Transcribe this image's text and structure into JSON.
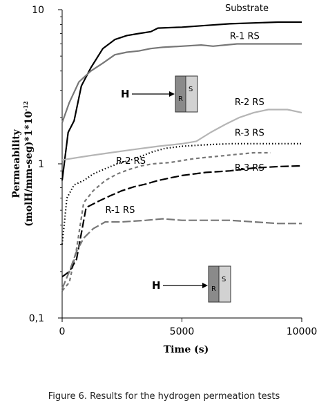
{
  "chart_data": {
    "type": "line",
    "x_axis": {
      "label": "Time (s)",
      "range": [
        0,
        10000
      ],
      "ticks": [
        0,
        5000,
        10000
      ],
      "tick_labels": [
        "0",
        "5000",
        "10000"
      ]
    },
    "y_axis": {
      "label": "Permeability (molH/mm-seg)*1*10",
      "label_exponent": "-12",
      "scale": "log",
      "range": [
        0.1,
        10
      ],
      "ticks": [
        0.1,
        1,
        10
      ],
      "tick_labels": [
        "0,1",
        "1",
        "10"
      ]
    },
    "grid": false,
    "series": [
      {
        "name": "Substrate",
        "color": "#000000",
        "dash": "solid",
        "points": [
          [
            0,
            0.78
          ],
          [
            250,
            1.6
          ],
          [
            500,
            1.9
          ],
          [
            800,
            3.2
          ],
          [
            1200,
            4.2
          ],
          [
            1700,
            5.6
          ],
          [
            2200,
            6.4
          ],
          [
            2700,
            6.8
          ],
          [
            3200,
            7.0
          ],
          [
            3700,
            7.2
          ],
          [
            4000,
            7.6
          ],
          [
            5000,
            7.7
          ],
          [
            6000,
            7.9
          ],
          [
            7000,
            8.1
          ],
          [
            8000,
            8.2
          ],
          [
            9000,
            8.3
          ],
          [
            10000,
            8.3
          ]
        ]
      },
      {
        "name": "R-1 RS",
        "color": "#777777",
        "dash": "solid",
        "points": [
          [
            0,
            1.85
          ],
          [
            300,
            2.5
          ],
          [
            700,
            3.4
          ],
          [
            1200,
            4.0
          ],
          [
            1700,
            4.5
          ],
          [
            2200,
            5.1
          ],
          [
            2700,
            5.3
          ],
          [
            3200,
            5.4
          ],
          [
            3700,
            5.6
          ],
          [
            4200,
            5.7
          ],
          [
            5000,
            5.8
          ],
          [
            5800,
            5.9
          ],
          [
            6300,
            5.8
          ],
          [
            6800,
            5.9
          ],
          [
            7300,
            6.0
          ],
          [
            8000,
            6.0
          ],
          [
            9000,
            6.0
          ],
          [
            10000,
            6.0
          ]
        ]
      },
      {
        "name": "R-2 RS",
        "color": "#b5b5b5",
        "dash": "solid",
        "points": [
          [
            0,
            1.06
          ],
          [
            1000,
            1.12
          ],
          [
            2000,
            1.18
          ],
          [
            3000,
            1.24
          ],
          [
            4000,
            1.3
          ],
          [
            5000,
            1.35
          ],
          [
            5600,
            1.4
          ],
          [
            6200,
            1.6
          ],
          [
            6800,
            1.8
          ],
          [
            7400,
            2.0
          ],
          [
            8000,
            2.15
          ],
          [
            8600,
            2.25
          ],
          [
            9400,
            2.25
          ],
          [
            10000,
            2.15
          ]
        ]
      },
      {
        "name": "R-3 RS",
        "color": "#000000",
        "dash": "dotted",
        "points": [
          [
            0,
            0.3
          ],
          [
            200,
            0.6
          ],
          [
            500,
            0.73
          ],
          [
            900,
            0.78
          ],
          [
            1300,
            0.86
          ],
          [
            1800,
            0.93
          ],
          [
            2300,
            1.0
          ],
          [
            2800,
            1.05
          ],
          [
            3300,
            1.12
          ],
          [
            3800,
            1.2
          ],
          [
            4300,
            1.26
          ],
          [
            5000,
            1.3
          ],
          [
            6000,
            1.33
          ],
          [
            7000,
            1.35
          ],
          [
            8000,
            1.35
          ],
          [
            9000,
            1.35
          ],
          [
            10000,
            1.35
          ]
        ]
      },
      {
        "name": "R-2 RS",
        "color": "#777777",
        "dash": "dashed",
        "points": [
          [
            0,
            0.15
          ],
          [
            300,
            0.17
          ],
          [
            600,
            0.28
          ],
          [
            900,
            0.56
          ],
          [
            1300,
            0.67
          ],
          [
            1800,
            0.78
          ],
          [
            2300,
            0.86
          ],
          [
            2800,
            0.92
          ],
          [
            3300,
            0.97
          ],
          [
            3800,
            1.0
          ],
          [
            4500,
            1.02
          ],
          [
            5500,
            1.08
          ],
          [
            6500,
            1.12
          ],
          [
            7500,
            1.16
          ],
          [
            8000,
            1.18
          ],
          [
            8700,
            1.18
          ]
        ]
      },
      {
        "name": "R-3 RS",
        "color": "#000000",
        "dash": "longdash",
        "points": [
          [
            0,
            0.185
          ],
          [
            300,
            0.2
          ],
          [
            600,
            0.24
          ],
          [
            1000,
            0.52
          ],
          [
            1500,
            0.57
          ],
          [
            2000,
            0.62
          ],
          [
            2500,
            0.67
          ],
          [
            3000,
            0.71
          ],
          [
            3500,
            0.74
          ],
          [
            4000,
            0.78
          ],
          [
            4500,
            0.81
          ],
          [
            5000,
            0.84
          ],
          [
            5500,
            0.86
          ],
          [
            6000,
            0.88
          ],
          [
            7000,
            0.9
          ],
          [
            8000,
            0.94
          ],
          [
            9000,
            0.96
          ],
          [
            10000,
            0.97
          ]
        ]
      },
      {
        "name": "R-1 RS",
        "color": "#777777",
        "dash": "longdash",
        "points": [
          [
            0,
            0.155
          ],
          [
            300,
            0.2
          ],
          [
            600,
            0.27
          ],
          [
            900,
            0.33
          ],
          [
            1300,
            0.38
          ],
          [
            1800,
            0.42
          ],
          [
            2500,
            0.42
          ],
          [
            3500,
            0.43
          ],
          [
            4200,
            0.44
          ],
          [
            5000,
            0.43
          ],
          [
            6000,
            0.43
          ],
          [
            7000,
            0.43
          ],
          [
            8000,
            0.42
          ],
          [
            9000,
            0.41
          ],
          [
            10000,
            0.41
          ]
        ]
      }
    ],
    "series_labels": [
      {
        "text": "Substrate",
        "x": 6800,
        "y": 9.8
      },
      {
        "text": "R-1 RS",
        "x": 7000,
        "y": 6.45
      },
      {
        "text": "R-2 RS",
        "x": 7200,
        "y": 2.4
      },
      {
        "text": "R-3 RS",
        "x": 7200,
        "y": 1.52
      },
      {
        "text": "R-2 RS",
        "x": 2250,
        "y": 1.0
      },
      {
        "text": "R-3 RS",
        "x": 7200,
        "y": 0.9
      },
      {
        "text": "R-1 RS",
        "x": 1800,
        "y": 0.48
      }
    ],
    "insets": [
      {
        "arrow_label": "H",
        "layer1": "R",
        "layer2": "S"
      },
      {
        "arrow_label": "H",
        "layer1": "R",
        "layer2": "S"
      }
    ]
  },
  "caption": "Figure 6. Results for the hydrogen permeation tests"
}
